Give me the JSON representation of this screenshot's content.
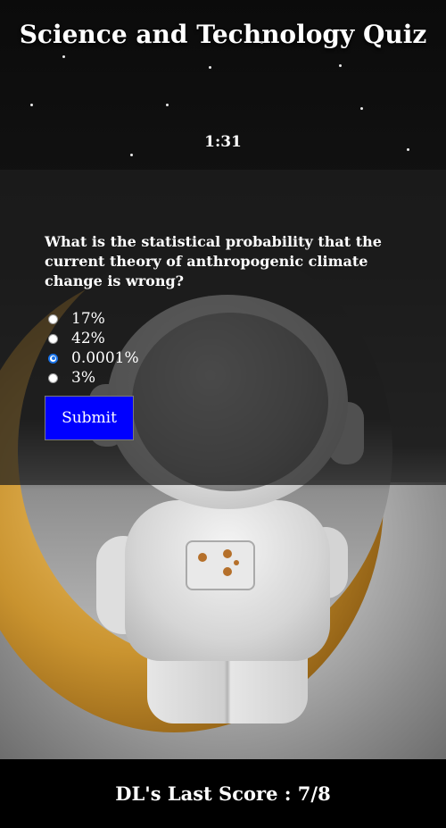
{
  "header": {
    "title": "Science and Technology Quiz",
    "timer": "1:31"
  },
  "quiz": {
    "question": "What is the statistical probability that the current theory of anthropogenic climate change is wrong?",
    "options": [
      {
        "label": "17%",
        "selected": false
      },
      {
        "label": "42%",
        "selected": false
      },
      {
        "label": "0.0001%",
        "selected": true
      },
      {
        "label": "3%",
        "selected": false
      }
    ],
    "submit_label": "Submit"
  },
  "footer": {
    "score_text": "DL's Last Score : 7/8"
  },
  "colors": {
    "submit_bg": "#0000ff",
    "radio_selected": "#1a73e8",
    "footer_bg": "#000000"
  }
}
